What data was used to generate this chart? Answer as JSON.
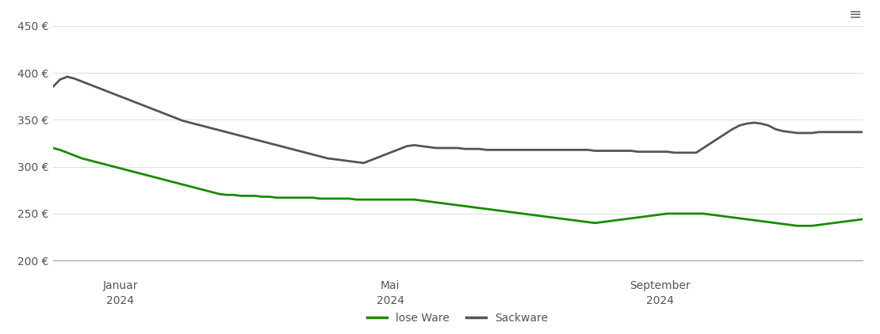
{
  "ylim": [
    200,
    460
  ],
  "yticks": [
    200,
    250,
    300,
    350,
    400,
    450
  ],
  "ytick_labels": [
    "200 €",
    "250 €",
    "300 €",
    "350 €",
    "400 €",
    "450 €"
  ],
  "background_color": "#ffffff",
  "grid_color": "#e0e0e0",
  "line_color_lose": "#1a8a00",
  "line_color_sack": "#555555",
  "legend_labels": [
    "lose Ware",
    "Sackware"
  ],
  "x_tick_labels_top": [
    "Januar",
    "Mai",
    "September"
  ],
  "x_tick_labels_bottom": [
    "2024",
    "2024",
    "2024"
  ],
  "lose_ware": [
    320,
    318,
    315,
    312,
    309,
    307,
    305,
    303,
    301,
    299,
    297,
    295,
    293,
    291,
    289,
    287,
    285,
    283,
    281,
    279,
    277,
    275,
    273,
    271,
    270,
    270,
    269,
    269,
    269,
    268,
    268,
    267,
    267,
    267,
    267,
    267,
    267,
    266,
    266,
    266,
    266,
    266,
    265,
    265,
    265,
    265,
    265,
    265,
    265,
    265,
    265,
    264,
    263,
    262,
    261,
    260,
    259,
    258,
    257,
    256,
    255,
    254,
    253,
    252,
    251,
    250,
    249,
    248,
    247,
    246,
    245,
    244,
    243,
    242,
    241,
    240,
    241,
    242,
    243,
    244,
    245,
    246,
    247,
    248,
    249,
    250,
    250,
    250,
    250,
    250,
    250,
    249,
    248,
    247,
    246,
    245,
    244,
    243,
    242,
    241,
    240,
    239,
    238,
    237,
    237,
    237,
    238,
    239,
    240,
    241,
    242,
    243,
    244
  ],
  "sackware": [
    385,
    393,
    396,
    394,
    391,
    388,
    385,
    382,
    379,
    376,
    373,
    370,
    367,
    364,
    361,
    358,
    355,
    352,
    349,
    347,
    345,
    343,
    341,
    339,
    337,
    335,
    333,
    331,
    329,
    327,
    325,
    323,
    321,
    319,
    317,
    315,
    313,
    311,
    309,
    308,
    307,
    306,
    305,
    304,
    307,
    310,
    313,
    316,
    319,
    322,
    323,
    322,
    321,
    320,
    320,
    320,
    320,
    319,
    319,
    319,
    318,
    318,
    318,
    318,
    318,
    318,
    318,
    318,
    318,
    318,
    318,
    318,
    318,
    318,
    318,
    317,
    317,
    317,
    317,
    317,
    317,
    316,
    316,
    316,
    316,
    316,
    315,
    315,
    315,
    315,
    320,
    325,
    330,
    335,
    340,
    344,
    346,
    347,
    346,
    344,
    340,
    338,
    337,
    336,
    336,
    336,
    337,
    337,
    337,
    337,
    337,
    337,
    337
  ]
}
